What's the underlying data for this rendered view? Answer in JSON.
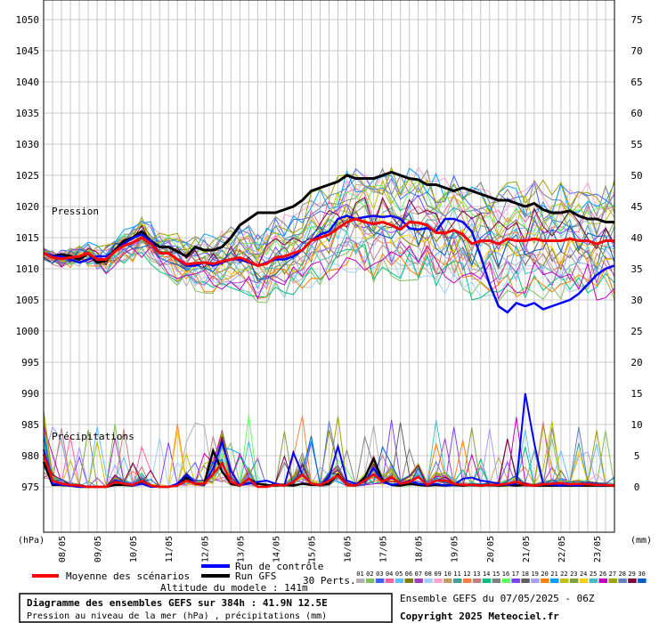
{
  "chart_data": {
    "type": "line",
    "title": "Diagramme des ensembles GEFS sur 384h : 41.9N 12.5E",
    "subtitle": "Pression au niveau de la mer (hPa) , précipitations (mm)",
    "left_axis": {
      "unit": "(hPa)",
      "ticks": [
        "1050",
        "1045",
        "1040",
        "1035",
        "1030",
        "1025",
        "1020",
        "1015",
        "1010",
        "1005",
        "1000",
        "995",
        "990",
        "985",
        "980",
        "975"
      ],
      "range": [
        975,
        1050
      ]
    },
    "right_axis": {
      "unit": "(mm)",
      "ticks": [
        "75",
        "70",
        "65",
        "60",
        "55",
        "50",
        "45",
        "40",
        "35",
        "30",
        "25",
        "20",
        "15",
        "10",
        "5",
        "0"
      ],
      "range": [
        0,
        75
      ]
    },
    "x_ticks": [
      "08/05",
      "09/05",
      "10/05",
      "11/05",
      "12/05",
      "13/05",
      "14/05",
      "15/05",
      "16/05",
      "17/05",
      "18/05",
      "19/05",
      "20/05",
      "21/05",
      "22/05",
      "23/05"
    ],
    "annotations": {
      "pressure": "Pression",
      "precip": "Précipitations"
    },
    "grid": true,
    "x_hours": [
      0,
      6,
      12,
      18,
      24,
      30,
      36,
      42,
      48,
      54,
      60,
      66,
      72,
      78,
      84,
      90,
      96,
      102,
      108,
      114,
      120,
      126,
      132,
      138,
      144,
      150,
      156,
      162,
      168,
      174,
      180,
      186,
      192,
      198,
      204,
      210,
      216,
      222,
      228,
      234,
      240,
      246,
      252,
      258,
      264,
      270,
      276,
      282,
      288,
      294,
      300,
      306,
      312,
      318,
      324,
      330,
      336,
      342,
      348,
      354,
      360,
      366,
      372,
      378,
      384
    ],
    "series": [
      {
        "name": "Moyenne des scénarios",
        "color": "#ff0000",
        "values": [
          1012.5,
          1011.8,
          1011.6,
          1011.8,
          1012.0,
          1012.5,
          1011.5,
          1011.5,
          1012.8,
          1013.7,
          1014.2,
          1015.0,
          1014.0,
          1012.5,
          1012.5,
          1011.5,
          1010.7,
          1010.9,
          1011.0,
          1010.8,
          1011.2,
          1011.5,
          1011.8,
          1011.2,
          1010.5,
          1010.8,
          1011.8,
          1012.0,
          1012.5,
          1013.0,
          1014.5,
          1015.0,
          1015.5,
          1016.5,
          1017.5,
          1018.0,
          1017.5,
          1017.2,
          1017.5,
          1017.0,
          1016.3,
          1017.5,
          1017.4,
          1017.0,
          1015.8,
          1015.7,
          1016.2,
          1015.5,
          1014.0,
          1014.5,
          1014.5,
          1014.0,
          1014.8,
          1014.5,
          1014.5,
          1014.8,
          1014.5,
          1014.5,
          1014.5,
          1014.8,
          1014.5,
          1014.5,
          1014.0,
          1014.5,
          1014.5
        ],
        "precip": [
          5.2,
          1.0,
          0.5,
          0.3,
          0.2,
          0,
          0,
          0,
          0.8,
          0.5,
          0.3,
          1.0,
          0.2,
          0,
          0,
          0.2,
          1.0,
          0.5,
          0.5,
          2.0,
          3.8,
          0.8,
          0.2,
          1.3,
          0,
          0,
          0.3,
          0.2,
          0.8,
          2.0,
          0.5,
          0.3,
          1.0,
          1.8,
          0.3,
          0.2,
          1.0,
          2.0,
          0.8,
          1.6,
          0.5,
          0.8,
          1.6,
          0.3,
          1.0,
          1.0,
          0.5,
          0.3,
          0.3,
          0.2,
          0.3,
          0.3,
          0.5,
          0.8,
          0.3,
          0.2,
          0.4,
          0.5,
          0.6,
          0.4,
          0.5,
          0.4,
          0.3,
          0.3,
          0.2
        ]
      },
      {
        "name": "Run de contrôle",
        "color": "#0000ff",
        "values": [
          1012.5,
          1012.0,
          1012.0,
          1011.5,
          1011.0,
          1011.5,
          1012.0,
          1012.0,
          1012.8,
          1014.0,
          1015.0,
          1015.5,
          1014.5,
          1012.5,
          1012.5,
          1011.5,
          1010.5,
          1010.5,
          1011.0,
          1010.5,
          1011.0,
          1011.5,
          1011.5,
          1011.0,
          1010.5,
          1011.0,
          1011.5,
          1011.5,
          1012.0,
          1013.0,
          1014.5,
          1015.5,
          1016.0,
          1018.0,
          1018.5,
          1018.0,
          1018.3,
          1018.5,
          1018.3,
          1018.5,
          1018.0,
          1016.5,
          1016.3,
          1016.5,
          1016.0,
          1018.0,
          1018.0,
          1017.5,
          1016.0,
          1012.0,
          1007.5,
          1004.0,
          1003.0,
          1004.5,
          1004.0,
          1004.5,
          1003.5,
          1004.0,
          1004.5,
          1005.0,
          1006.0,
          1007.5,
          1009.0,
          1010.0,
          1010.5
        ],
        "precip": [
          6,
          0.5,
          0.3,
          0.2,
          0,
          0,
          0,
          0,
          1.0,
          0.5,
          0.2,
          0.5,
          0,
          0,
          0,
          0.5,
          2.0,
          0.5,
          0.3,
          3.0,
          7.2,
          2.5,
          0.3,
          0.5,
          0.8,
          1.0,
          0.5,
          0.2,
          5.5,
          2.0,
          0.5,
          0.3,
          1.5,
          6.5,
          1.0,
          0.5,
          0.8,
          3.0,
          0.8,
          0.3,
          0.5,
          1.0,
          0.5,
          0.3,
          0.5,
          0.2,
          0.3,
          1.3,
          1.5,
          1.0,
          0.8,
          0.5,
          0.3,
          0.5,
          15.0,
          7.0,
          0.5,
          0.3,
          0.2,
          0.3,
          0.2,
          0.5,
          0.2,
          0.3,
          0.2
        ]
      },
      {
        "name": "Run GFS",
        "color": "#000000",
        "values": [
          1012.5,
          1012.0,
          1012.3,
          1012.0,
          1011.5,
          1012.5,
          1011.0,
          1011.3,
          1013.0,
          1014.5,
          1015.0,
          1016.0,
          1014.5,
          1013.5,
          1013.5,
          1012.8,
          1012.0,
          1013.5,
          1013.0,
          1013.0,
          1013.5,
          1015.0,
          1017.0,
          1018.0,
          1019.0,
          1019.0,
          1019.0,
          1019.5,
          1020.0,
          1021.0,
          1022.5,
          1023.0,
          1023.5,
          1024.0,
          1025.0,
          1024.5,
          1024.5,
          1024.5,
          1025.0,
          1025.5,
          1025.0,
          1024.5,
          1024.3,
          1023.5,
          1023.5,
          1023.0,
          1022.5,
          1023.0,
          1022.5,
          1022.0,
          1021.5,
          1021.0,
          1021.0,
          1020.5,
          1020.0,
          1020.5,
          1019.5,
          1019.0,
          1019.0,
          1019.3,
          1018.5,
          1018.0,
          1018.0,
          1017.5,
          1017.5
        ],
        "precip": [
          4.0,
          0.3,
          0.3,
          0.2,
          0,
          0,
          0,
          0,
          0.3,
          0.3,
          0.2,
          1.0,
          0.2,
          0,
          0,
          0.3,
          1.5,
          0.5,
          0.5,
          5.8,
          2.5,
          0.5,
          0.2,
          1.3,
          0.5,
          0.3,
          0.2,
          0.3,
          0.2,
          0.5,
          0.3,
          0.3,
          0.5,
          2.0,
          0.3,
          0.2,
          1.5,
          4.5,
          1.0,
          0.3,
          0.2,
          0.5,
          0.3,
          0.2,
          0.3,
          0.2,
          0.3,
          0.2,
          0.3,
          0.2,
          0.3,
          0.2,
          0.3,
          0.2,
          0.3,
          0.2,
          0.2,
          0.2,
          0.2,
          0.2,
          0.2,
          0.2,
          0.2,
          0.2,
          0.2
        ]
      }
    ],
    "perturbation_colors": [
      "#b0b0b0",
      "#80c060",
      "#4060ff",
      "#ff60a0",
      "#60c0ff",
      "#808000",
      "#a040c0",
      "#a0d0ff",
      "#ffa0d0",
      "#c0a060",
      "#40a0a0",
      "#ff8040",
      "#c08080",
      "#00c080",
      "#808080",
      "#60ff60",
      "#8040ff",
      "#606060",
      "#a0a0ff",
      "#ff8000",
      "#00a0ff",
      "#c0c000",
      "#80a040",
      "#ffd000",
      "#40c0c0",
      "#c000c0",
      "#a0a000",
      "#6080c0",
      "#800040",
      "#0060c0"
    ]
  },
  "legend": {
    "mean": "Moyenne des scénarios",
    "control": "Run de contrôle",
    "gfs": "Run GFS",
    "perts": "30 Perts.",
    "pert_labels": [
      "01",
      "02",
      "03",
      "04",
      "05",
      "06",
      "07",
      "08",
      "09",
      "10",
      "11",
      "12",
      "13",
      "14",
      "15",
      "16",
      "17",
      "18",
      "19",
      "20",
      "21",
      "22",
      "23",
      "24",
      "25",
      "26",
      "27",
      "28",
      "29",
      "30"
    ]
  },
  "footer": {
    "title": "Diagramme des ensembles GEFS sur 384h : 41.9N 12.5E",
    "subtitle": "Pression au niveau de la mer (hPa) , précipitations (mm)",
    "altitude": "Altitude du modele : 141m",
    "ensemble": "Ensemble GEFS du 07/05/2025 - 06Z",
    "copyright": "Copyright 2025 Meteociel.fr"
  }
}
